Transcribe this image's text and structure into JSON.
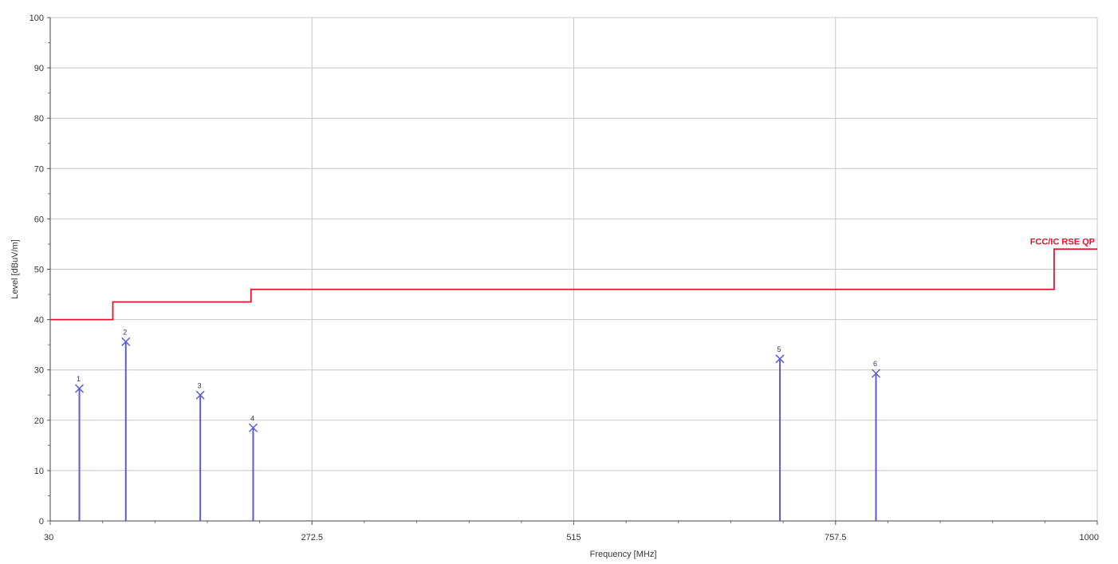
{
  "chart_data": {
    "type": "line",
    "xlabel": "Frequency [MHz]",
    "ylabel": "Level [dBuV/m]",
    "xlim": [
      30,
      1000
    ],
    "ylim": [
      0,
      100
    ],
    "x_ticks": [
      30,
      272.5,
      515,
      757.5,
      1000
    ],
    "x_tick_labels": [
      "30",
      "272.5",
      "515",
      "757.5",
      "1000"
    ],
    "y_ticks": [
      0,
      10,
      20,
      30,
      40,
      50,
      60,
      70,
      80,
      90,
      100
    ],
    "y_tick_labels": [
      "0",
      "10",
      "20",
      "30",
      "40",
      "50",
      "60",
      "70",
      "80",
      "90",
      "100"
    ],
    "grid": true,
    "limit_line": {
      "name": "FCC/IC RSE QP",
      "color": "#e8102a",
      "points": [
        [
          30,
          40
        ],
        [
          88,
          40
        ],
        [
          88,
          43.5
        ],
        [
          216,
          43.5
        ],
        [
          216,
          46
        ],
        [
          960,
          46
        ],
        [
          960,
          54
        ],
        [
          1000,
          54
        ]
      ]
    },
    "markers": {
      "color": "#5b5bd6",
      "points": [
        {
          "label": "1",
          "x": 57,
          "y": 26.3
        },
        {
          "label": "2",
          "x": 100,
          "y": 35.6
        },
        {
          "label": "3",
          "x": 169,
          "y": 25
        },
        {
          "label": "4",
          "x": 218,
          "y": 18.5
        },
        {
          "label": "5",
          "x": 706,
          "y": 32.2
        },
        {
          "label": "6",
          "x": 795,
          "y": 29.3
        }
      ]
    }
  }
}
